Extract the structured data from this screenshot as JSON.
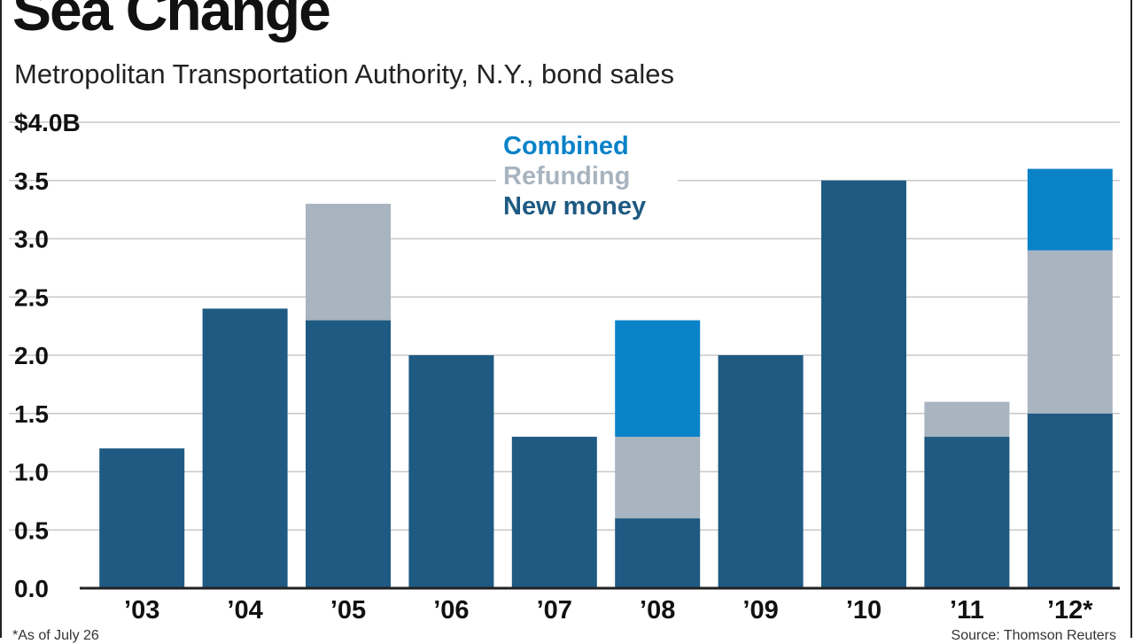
{
  "header": {
    "title": "Sea Change",
    "subtitle": "Metropolitan Transportation Authority, N.Y., bond sales"
  },
  "footer": {
    "footnote": "*As of July 26",
    "source": "Source: Thomson Reuters"
  },
  "colors": {
    "new_money": "#1e5a82",
    "refunding": "#a8b4bf",
    "combined": "#0a82c8",
    "grid": "#c8c8c8",
    "axis": "#222222"
  },
  "chart_data": {
    "type": "bar",
    "stacked": true,
    "categories": [
      "’03",
      "’04",
      "’05",
      "’06",
      "’07",
      "’08",
      "’09",
      "’10",
      "’11",
      "’12*"
    ],
    "series": [
      {
        "name": "New money",
        "color": "#1e5a82",
        "values": [
          1.2,
          2.4,
          2.3,
          2.0,
          1.3,
          0.6,
          2.0,
          3.5,
          1.3,
          1.5
        ]
      },
      {
        "name": "Refunding",
        "color": "#a8b4bf",
        "values": [
          0,
          0,
          1.0,
          0,
          0,
          0.7,
          0,
          0,
          0.3,
          1.4
        ]
      },
      {
        "name": "Combined",
        "color": "#0a82c8",
        "values": [
          0,
          0,
          0,
          0,
          0,
          1.0,
          0,
          0,
          0,
          0.7
        ]
      }
    ],
    "yticks": [
      "0.0",
      "0.5",
      "1.0",
      "1.5",
      "2.0",
      "2.5",
      "3.0",
      "3.5",
      "$4.0B"
    ],
    "ylim": [
      0,
      4.0
    ],
    "grid": true,
    "legend": {
      "placement": "top-center",
      "order": [
        "Combined",
        "Refunding",
        "New money"
      ]
    }
  }
}
